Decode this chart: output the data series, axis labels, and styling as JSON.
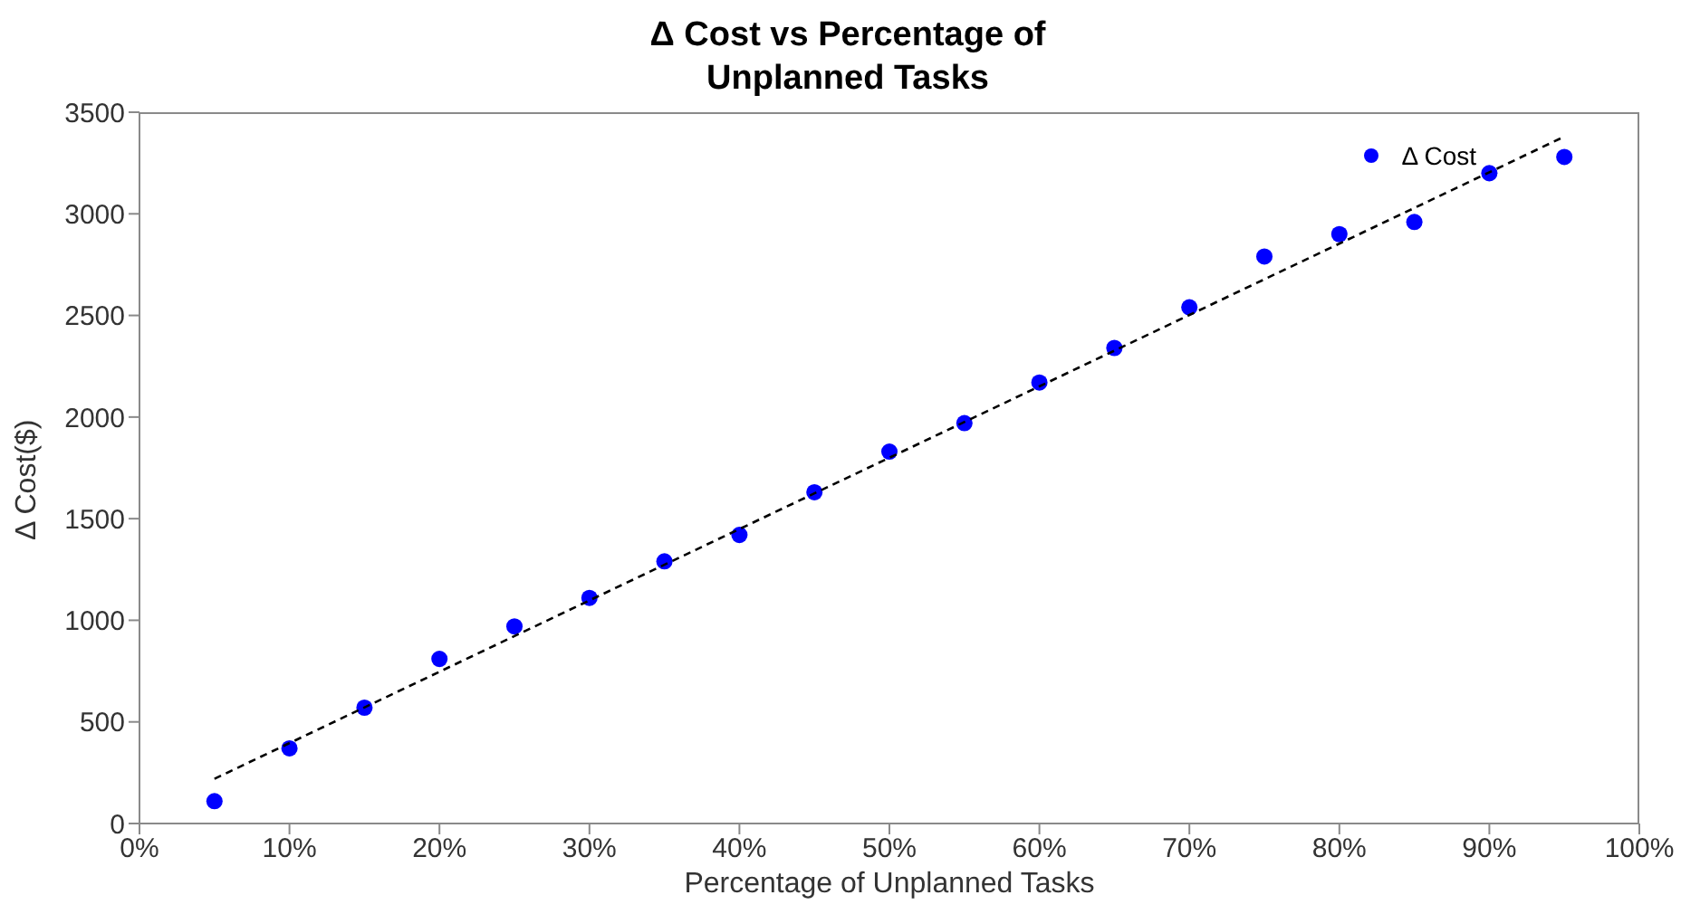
{
  "chart_data": {
    "type": "scatter",
    "title": "Δ Cost vs Percentage of Unplanned Tasks",
    "xlabel": "Percentage of Unplanned Tasks",
    "ylabel": "Δ Cost($)",
    "xlim": [
      0,
      100
    ],
    "xticks": [
      {
        "value": 0,
        "label": "0%"
      },
      {
        "value": 10,
        "label": "10%"
      },
      {
        "value": 20,
        "label": "20%"
      },
      {
        "value": 30,
        "label": "30%"
      },
      {
        "value": 40,
        "label": "40%"
      },
      {
        "value": 50,
        "label": "50%"
      },
      {
        "value": 60,
        "label": "60%"
      },
      {
        "value": 70,
        "label": "70%"
      },
      {
        "value": 80,
        "label": "80%"
      },
      {
        "value": 90,
        "label": "90%"
      },
      {
        "value": 100,
        "label": "100%"
      }
    ],
    "ylim": [
      0,
      3500
    ],
    "yticks": [
      0,
      500,
      1000,
      1500,
      2000,
      2500,
      3000,
      3500
    ],
    "grid": false,
    "legend": "top right",
    "series": [
      {
        "name": "Δ Cost",
        "marker": "circle",
        "color": "#0000ff",
        "x": [
          5,
          10,
          15,
          20,
          25,
          30,
          35,
          40,
          45,
          50,
          55,
          60,
          65,
          70,
          75,
          80,
          85,
          90,
          95
        ],
        "values": [
          110,
          370,
          570,
          810,
          970,
          1110,
          1290,
          1420,
          1630,
          1830,
          1970,
          2170,
          2340,
          2540,
          2790,
          2900,
          2960,
          3200,
          3280
        ]
      },
      {
        "type": "line",
        "marker": "none",
        "color": "#000000",
        "line_style": "dashed",
        "x": [
          5,
          95
        ],
        "values": [
          220,
          3380
        ]
      }
    ]
  }
}
